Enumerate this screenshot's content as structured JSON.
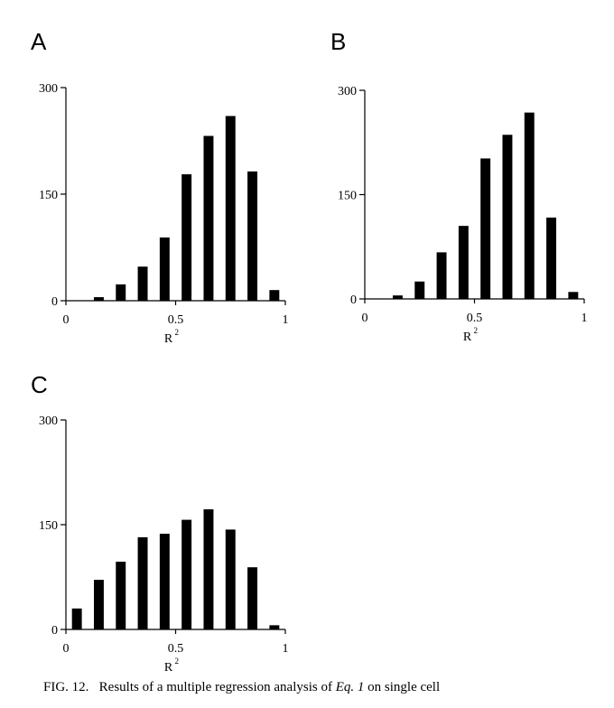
{
  "chart_data": [
    {
      "type": "bar",
      "panel_label": "A",
      "categories": [
        0.05,
        0.15,
        0.25,
        0.35,
        0.45,
        0.55,
        0.65,
        0.75,
        0.85,
        0.95
      ],
      "values": [
        0,
        5,
        23,
        48,
        89,
        178,
        232,
        260,
        182,
        15
      ],
      "xlabel": "R",
      "xlabel_sup": "2",
      "xticks": [
        "0",
        "0.5",
        "1"
      ],
      "yticks": [
        "0",
        "150",
        "300"
      ],
      "xlim": [
        0,
        1
      ],
      "ylim": [
        0,
        300
      ],
      "grid": false
    },
    {
      "type": "bar",
      "panel_label": "B",
      "categories": [
        0.05,
        0.15,
        0.25,
        0.35,
        0.45,
        0.55,
        0.65,
        0.75,
        0.85,
        0.95
      ],
      "values": [
        0,
        5,
        25,
        67,
        105,
        202,
        236,
        268,
        117,
        10
      ],
      "xlabel": "R",
      "xlabel_sup": "2",
      "xticks": [
        "0",
        "0.5",
        "1"
      ],
      "yticks": [
        "0",
        "150",
        "300"
      ],
      "xlim": [
        0,
        1
      ],
      "ylim": [
        0,
        300
      ],
      "grid": false
    },
    {
      "type": "bar",
      "panel_label": "C",
      "categories": [
        0.05,
        0.15,
        0.25,
        0.35,
        0.45,
        0.55,
        0.65,
        0.75,
        0.85,
        0.95
      ],
      "values": [
        30,
        71,
        97,
        132,
        137,
        157,
        172,
        143,
        89,
        6
      ],
      "xlabel": "R",
      "xlabel_sup": "2",
      "xticks": [
        "0",
        "0.5",
        "1"
      ],
      "yticks": [
        "0",
        "150",
        "300"
      ],
      "xlim": [
        0,
        1
      ],
      "ylim": [
        0,
        300
      ],
      "grid": false
    }
  ],
  "caption": {
    "fig_label": "FIG. 12.",
    "text_before": "Results of a multiple regression analysis of",
    "eq": "Eq. 1",
    "text_after": "on single cell"
  }
}
